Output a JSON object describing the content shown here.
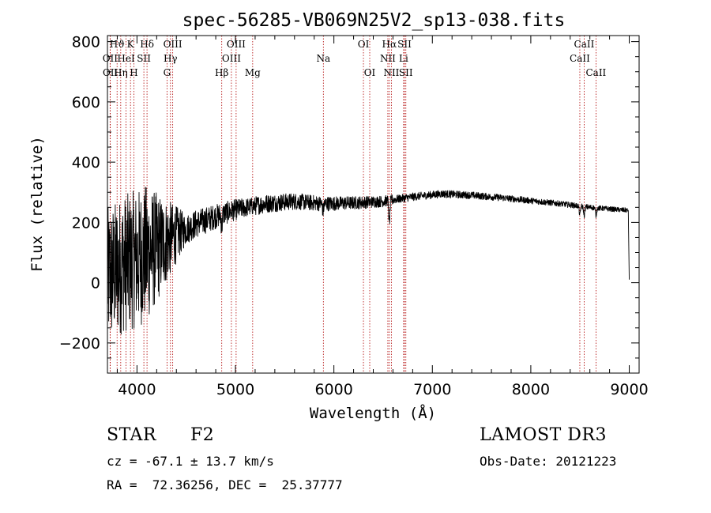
{
  "chart_data": {
    "type": "line",
    "title": "spec-56285-VB069N25V2_sp13-038.fits",
    "xlabel": "Wavelength (Å)",
    "ylabel": "Flux (relative)",
    "xlim": [
      3700,
      9100
    ],
    "ylim": [
      -300,
      820
    ],
    "xticks": [
      4000,
      5000,
      6000,
      7000,
      8000,
      9000
    ],
    "yticks": [
      -200,
      0,
      200,
      400,
      600,
      800
    ],
    "continuum_anchors": [
      [
        3700,
        20
      ],
      [
        3850,
        60
      ],
      [
        4000,
        80
      ],
      [
        4200,
        115
      ],
      [
        4400,
        160
      ],
      [
        4600,
        195
      ],
      [
        4800,
        220
      ],
      [
        5000,
        242
      ],
      [
        5300,
        262
      ],
      [
        5600,
        270
      ],
      [
        5900,
        262
      ],
      [
        6200,
        265
      ],
      [
        6500,
        270
      ],
      [
        6800,
        285
      ],
      [
        7100,
        295
      ],
      [
        7400,
        290
      ],
      [
        7700,
        282
      ],
      [
        8000,
        272
      ],
      [
        8300,
        262
      ],
      [
        8600,
        250
      ],
      [
        8900,
        242
      ],
      [
        9000,
        240
      ]
    ],
    "absorption_features": [
      {
        "wavelength": 6563,
        "depth": 75
      },
      {
        "wavelength": 8498,
        "depth": 30
      },
      {
        "wavelength": 8542,
        "depth": 30
      },
      {
        "wavelength": 8662,
        "depth": 25
      },
      {
        "wavelength": 4861,
        "depth": 40
      },
      {
        "wavelength": 5890,
        "depth": 25
      }
    ],
    "spectral_lines": [
      {
        "label": "Hϑ",
        "wavelength": 3798,
        "row": 0
      },
      {
        "label": "OII",
        "wavelength": 3727,
        "row": 1
      },
      {
        "label": "OII",
        "wavelength": 3729,
        "row": 2
      },
      {
        "label": "HeI",
        "wavelength": 3889,
        "row": 1
      },
      {
        "label": "Hη",
        "wavelength": 3835,
        "row": 2
      },
      {
        "label": "K",
        "wavelength": 3934,
        "row": 0
      },
      {
        "label": "SII",
        "wavelength": 4070,
        "row": 1
      },
      {
        "label": "H",
        "wavelength": 3969,
        "row": 2
      },
      {
        "label": "Hδ",
        "wavelength": 4102,
        "row": 0
      },
      {
        "label": "OIII",
        "wavelength": 4363,
        "row": 0
      },
      {
        "label": "Hγ",
        "wavelength": 4340,
        "row": 1
      },
      {
        "label": "G",
        "wavelength": 4305,
        "row": 2
      },
      {
        "label": "Hβ",
        "wavelength": 4861,
        "row": 2
      },
      {
        "label": "OIII",
        "wavelength": 5007,
        "row": 0
      },
      {
        "label": "OIII",
        "wavelength": 4959,
        "row": 1
      },
      {
        "label": "Mg",
        "wavelength": 5175,
        "row": 2
      },
      {
        "label": "Na",
        "wavelength": 5893,
        "row": 1
      },
      {
        "label": "OI",
        "wavelength": 6300,
        "row": 0
      },
      {
        "label": "OI",
        "wavelength": 6364,
        "row": 2
      },
      {
        "label": "Hα",
        "wavelength": 6563,
        "row": 0
      },
      {
        "label": "NII",
        "wavelength": 6548,
        "row": 1
      },
      {
        "label": "NII",
        "wavelength": 6584,
        "row": 2
      },
      {
        "label": "SII",
        "wavelength": 6717,
        "row": 0
      },
      {
        "label": "Li",
        "wavelength": 6708,
        "row": 1
      },
      {
        "label": "SII",
        "wavelength": 6731,
        "row": 2
      },
      {
        "label": "CaII",
        "wavelength": 8542,
        "row": 0
      },
      {
        "label": "CaII",
        "wavelength": 8498,
        "row": 1
      },
      {
        "label": "CaII",
        "wavelength": 8662,
        "row": 2
      }
    ]
  },
  "info": {
    "object_class": "STAR",
    "subclass": "F2",
    "survey": "LAMOST DR3",
    "redshift": "cz = -67.1 ± 13.7 km/s",
    "obs_date": "Obs-Date: 20121223",
    "coords": "RA =  72.36256, DEC =  25.37777"
  }
}
